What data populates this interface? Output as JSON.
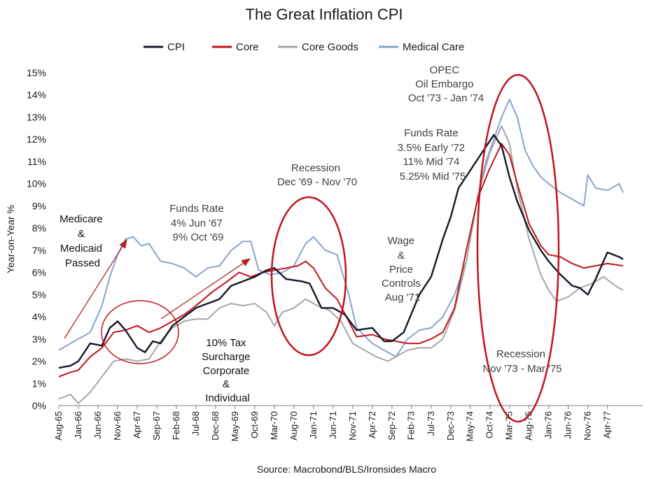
{
  "chart_data": {
    "type": "line",
    "title": "The Great Inflation CPI",
    "ylabel": "Year-on-Year %",
    "source": "Source: Macrobond/BLS/Ironsides Macro",
    "ylim": [
      0,
      15
    ],
    "yticks": [
      "0%",
      "1%",
      "2%",
      "3%",
      "4%",
      "5%",
      "6%",
      "7%",
      "8%",
      "9%",
      "10%",
      "11%",
      "12%",
      "13%",
      "14%",
      "15%"
    ],
    "xrange": [
      1965.583,
      1978.0
    ],
    "xticks": [
      {
        "label": "Aug-65",
        "x": 1965.583
      },
      {
        "label": "Jan-66",
        "x": 1966.0
      },
      {
        "label": "Jun-66",
        "x": 1966.417
      },
      {
        "label": "Nov-66",
        "x": 1966.833
      },
      {
        "label": "Apr-67",
        "x": 1967.25
      },
      {
        "label": "Sep-67",
        "x": 1967.667
      },
      {
        "label": "Feb-68",
        "x": 1968.083
      },
      {
        "label": "Jul-68",
        "x": 1968.5
      },
      {
        "label": "Dec-68",
        "x": 1968.917
      },
      {
        "label": "May-69",
        "x": 1969.333
      },
      {
        "label": "Oct-69",
        "x": 1969.75
      },
      {
        "label": "Mar-70",
        "x": 1970.167
      },
      {
        "label": "Aug-70",
        "x": 1970.583
      },
      {
        "label": "Jan-71",
        "x": 1971.0
      },
      {
        "label": "Jun-71",
        "x": 1971.417
      },
      {
        "label": "Nov-71",
        "x": 1971.833
      },
      {
        "label": "Apr-72",
        "x": 1972.25
      },
      {
        "label": "Sep-72",
        "x": 1972.667
      },
      {
        "label": "Feb-73",
        "x": 1973.083
      },
      {
        "label": "Jul-73",
        "x": 1973.5
      },
      {
        "label": "Dec-73",
        "x": 1973.917
      },
      {
        "label": "May-74",
        "x": 1974.333
      },
      {
        "label": "Oct-74",
        "x": 1974.75
      },
      {
        "label": "Mar-75",
        "x": 1975.167
      },
      {
        "label": "Aug-75",
        "x": 1975.583
      },
      {
        "label": "Jan-76",
        "x": 1976.0
      },
      {
        "label": "Jun-76",
        "x": 1976.417
      },
      {
        "label": "Nov-76",
        "x": 1976.833
      },
      {
        "label": "Apr-77",
        "x": 1977.25
      }
    ],
    "series": [
      {
        "name": "CPI",
        "color": "#111827",
        "points": [
          [
            1965.583,
            1.7
          ],
          [
            1965.833,
            1.8
          ],
          [
            1966.0,
            2.0
          ],
          [
            1966.25,
            2.8
          ],
          [
            1966.5,
            2.7
          ],
          [
            1966.667,
            3.5
          ],
          [
            1966.833,
            3.8
          ],
          [
            1967.0,
            3.4
          ],
          [
            1967.25,
            2.6
          ],
          [
            1967.417,
            2.4
          ],
          [
            1967.583,
            2.9
          ],
          [
            1967.75,
            2.8
          ],
          [
            1968.0,
            3.6
          ],
          [
            1968.25,
            4.0
          ],
          [
            1968.5,
            4.4
          ],
          [
            1968.75,
            4.6
          ],
          [
            1969.0,
            4.8
          ],
          [
            1969.25,
            5.4
          ],
          [
            1969.5,
            5.6
          ],
          [
            1969.75,
            5.8
          ],
          [
            1970.0,
            6.1
          ],
          [
            1970.167,
            6.2
          ],
          [
            1970.417,
            5.7
          ],
          [
            1970.75,
            5.6
          ],
          [
            1970.917,
            5.5
          ],
          [
            1971.167,
            4.4
          ],
          [
            1971.417,
            4.4
          ],
          [
            1971.667,
            4.1
          ],
          [
            1971.917,
            3.4
          ],
          [
            1972.25,
            3.5
          ],
          [
            1972.5,
            2.9
          ],
          [
            1972.667,
            2.9
          ],
          [
            1972.917,
            3.3
          ],
          [
            1973.25,
            5.0
          ],
          [
            1973.5,
            5.8
          ],
          [
            1973.75,
            7.5
          ],
          [
            1973.917,
            8.5
          ],
          [
            1974.083,
            9.8
          ],
          [
            1974.333,
            10.6
          ],
          [
            1974.583,
            11.4
          ],
          [
            1974.833,
            12.2
          ],
          [
            1975.0,
            11.7
          ],
          [
            1975.167,
            10.3
          ],
          [
            1975.333,
            9.2
          ],
          [
            1975.583,
            7.9
          ],
          [
            1975.833,
            7.0
          ],
          [
            1976.0,
            6.5
          ],
          [
            1976.25,
            5.9
          ],
          [
            1976.5,
            5.4
          ],
          [
            1976.667,
            5.3
          ],
          [
            1976.833,
            5.0
          ],
          [
            1977.0,
            5.7
          ],
          [
            1977.25,
            6.9
          ],
          [
            1977.5,
            6.7
          ],
          [
            1977.583,
            6.6
          ]
        ]
      },
      {
        "name": "Core",
        "color": "#c0141a",
        "points": [
          [
            1965.583,
            1.3
          ],
          [
            1965.833,
            1.5
          ],
          [
            1966.0,
            1.6
          ],
          [
            1966.25,
            2.2
          ],
          [
            1966.5,
            2.6
          ],
          [
            1966.75,
            3.3
          ],
          [
            1967.0,
            3.4
          ],
          [
            1967.25,
            3.6
          ],
          [
            1967.5,
            3.3
          ],
          [
            1967.75,
            3.5
          ],
          [
            1968.0,
            3.8
          ],
          [
            1968.25,
            4.1
          ],
          [
            1968.5,
            4.5
          ],
          [
            1968.833,
            5.1
          ],
          [
            1969.167,
            5.6
          ],
          [
            1969.417,
            6.0
          ],
          [
            1969.667,
            5.8
          ],
          [
            1969.917,
            6.0
          ],
          [
            1970.167,
            6.1
          ],
          [
            1970.417,
            6.2
          ],
          [
            1970.667,
            6.3
          ],
          [
            1970.833,
            6.5
          ],
          [
            1971.0,
            6.2
          ],
          [
            1971.25,
            5.3
          ],
          [
            1971.5,
            4.8
          ],
          [
            1971.75,
            3.8
          ],
          [
            1971.917,
            3.1
          ],
          [
            1972.25,
            3.2
          ],
          [
            1972.5,
            3.0
          ],
          [
            1972.75,
            2.9
          ],
          [
            1973.0,
            2.8
          ],
          [
            1973.25,
            2.8
          ],
          [
            1973.5,
            3.0
          ],
          [
            1973.75,
            3.3
          ],
          [
            1974.0,
            4.4
          ],
          [
            1974.25,
            7.0
          ],
          [
            1974.5,
            9.4
          ],
          [
            1974.75,
            10.7
          ],
          [
            1975.0,
            11.8
          ],
          [
            1975.167,
            11.3
          ],
          [
            1975.333,
            10.0
          ],
          [
            1975.583,
            8.2
          ],
          [
            1975.833,
            7.2
          ],
          [
            1976.0,
            6.8
          ],
          [
            1976.25,
            6.7
          ],
          [
            1976.5,
            6.4
          ],
          [
            1976.75,
            6.2
          ],
          [
            1977.0,
            6.3
          ],
          [
            1977.25,
            6.4
          ],
          [
            1977.583,
            6.3
          ]
        ]
      },
      {
        "name": "Core Goods",
        "color": "#a6a6a6",
        "points": [
          [
            1965.583,
            0.3
          ],
          [
            1965.833,
            0.5
          ],
          [
            1966.0,
            0.1
          ],
          [
            1966.25,
            0.6
          ],
          [
            1966.5,
            1.3
          ],
          [
            1966.75,
            2.0
          ],
          [
            1967.0,
            2.1
          ],
          [
            1967.25,
            2.0
          ],
          [
            1967.5,
            2.1
          ],
          [
            1967.75,
            2.9
          ],
          [
            1968.0,
            3.5
          ],
          [
            1968.25,
            3.8
          ],
          [
            1968.5,
            3.9
          ],
          [
            1968.75,
            3.9
          ],
          [
            1969.0,
            4.4
          ],
          [
            1969.25,
            4.6
          ],
          [
            1969.5,
            4.5
          ],
          [
            1969.75,
            4.6
          ],
          [
            1970.0,
            4.2
          ],
          [
            1970.167,
            3.6
          ],
          [
            1970.333,
            4.2
          ],
          [
            1970.583,
            4.4
          ],
          [
            1970.833,
            4.8
          ],
          [
            1971.083,
            4.5
          ],
          [
            1971.333,
            4.3
          ],
          [
            1971.583,
            3.8
          ],
          [
            1971.833,
            2.8
          ],
          [
            1972.083,
            2.5
          ],
          [
            1972.333,
            2.2
          ],
          [
            1972.583,
            2.0
          ],
          [
            1972.75,
            2.2
          ],
          [
            1973.0,
            2.5
          ],
          [
            1973.25,
            2.6
          ],
          [
            1973.5,
            2.6
          ],
          [
            1973.75,
            3.0
          ],
          [
            1974.0,
            4.3
          ],
          [
            1974.25,
            6.5
          ],
          [
            1974.5,
            9.5
          ],
          [
            1974.75,
            11.4
          ],
          [
            1975.0,
            12.6
          ],
          [
            1975.167,
            11.8
          ],
          [
            1975.333,
            9.8
          ],
          [
            1975.583,
            7.5
          ],
          [
            1975.833,
            5.9
          ],
          [
            1976.0,
            5.2
          ],
          [
            1976.167,
            4.7
          ],
          [
            1976.417,
            4.9
          ],
          [
            1976.667,
            5.3
          ],
          [
            1976.917,
            5.5
          ],
          [
            1977.167,
            5.8
          ],
          [
            1977.417,
            5.4
          ],
          [
            1977.583,
            5.2
          ]
        ]
      },
      {
        "name": "Medical Care",
        "color": "#8aa3cc",
        "points": [
          [
            1965.583,
            2.5
          ],
          [
            1965.833,
            2.8
          ],
          [
            1966.0,
            3.0
          ],
          [
            1966.25,
            3.3
          ],
          [
            1966.5,
            4.5
          ],
          [
            1966.667,
            5.8
          ],
          [
            1966.833,
            6.8
          ],
          [
            1967.0,
            7.5
          ],
          [
            1967.167,
            7.6
          ],
          [
            1967.333,
            7.2
          ],
          [
            1967.5,
            7.3
          ],
          [
            1967.75,
            6.5
          ],
          [
            1968.0,
            6.4
          ],
          [
            1968.25,
            6.2
          ],
          [
            1968.5,
            5.8
          ],
          [
            1968.75,
            6.2
          ],
          [
            1969.0,
            6.3
          ],
          [
            1969.25,
            7.0
          ],
          [
            1969.5,
            7.4
          ],
          [
            1969.667,
            7.4
          ],
          [
            1969.833,
            6.1
          ],
          [
            1970.083,
            5.9
          ],
          [
            1970.333,
            6.0
          ],
          [
            1970.583,
            6.3
          ],
          [
            1970.833,
            7.3
          ],
          [
            1971.0,
            7.6
          ],
          [
            1971.25,
            7.0
          ],
          [
            1971.5,
            6.8
          ],
          [
            1971.75,
            5.0
          ],
          [
            1971.917,
            3.5
          ],
          [
            1972.25,
            2.8
          ],
          [
            1972.5,
            2.5
          ],
          [
            1972.75,
            2.2
          ],
          [
            1973.0,
            3.0
          ],
          [
            1973.25,
            3.4
          ],
          [
            1973.5,
            3.5
          ],
          [
            1973.75,
            4.0
          ],
          [
            1974.0,
            5.0
          ],
          [
            1974.25,
            6.5
          ],
          [
            1974.5,
            9.5
          ],
          [
            1974.667,
            11.0
          ],
          [
            1974.833,
            12.0
          ],
          [
            1975.0,
            13.0
          ],
          [
            1975.167,
            13.8
          ],
          [
            1975.333,
            13.0
          ],
          [
            1975.5,
            11.5
          ],
          [
            1975.667,
            10.8
          ],
          [
            1975.833,
            10.3
          ],
          [
            1976.0,
            10.0
          ],
          [
            1976.25,
            9.6
          ],
          [
            1976.5,
            9.3
          ],
          [
            1976.75,
            9.0
          ],
          [
            1976.833,
            10.4
          ],
          [
            1977.0,
            9.8
          ],
          [
            1977.25,
            9.7
          ],
          [
            1977.5,
            10.0
          ],
          [
            1977.583,
            9.6
          ]
        ]
      }
    ],
    "legend": {
      "position": "top",
      "items": [
        "CPI",
        "Core",
        "Core Goods",
        "Medical Care"
      ]
    },
    "annotations": [
      {
        "lines": [
          "Medicare",
          "&",
          "Medicaid",
          "Passed"
        ]
      },
      {
        "lines": [
          "Funds Rate",
          "4% Jun '67",
          "9% Oct '69"
        ]
      },
      {
        "lines": [
          "10% Tax",
          "Surcharge",
          "Corporate",
          "&",
          "Individual"
        ]
      },
      {
        "lines": [
          "Recession",
          "Dec '69 - Nov '70"
        ]
      },
      {
        "lines": [
          "Wage",
          "&",
          "Price",
          "Controls",
          "Aug '71"
        ]
      },
      {
        "lines": [
          "OPEC",
          "Oil Embargo",
          "Oct '73 - Jan '74"
        ]
      },
      {
        "lines": [
          "Funds Rate",
          "3.5% Early '72",
          "11% Mid '74",
          "5.25% Mid '75"
        ]
      },
      {
        "lines": [
          "Recession",
          "Nov '73 - Mar '75"
        ]
      }
    ]
  }
}
